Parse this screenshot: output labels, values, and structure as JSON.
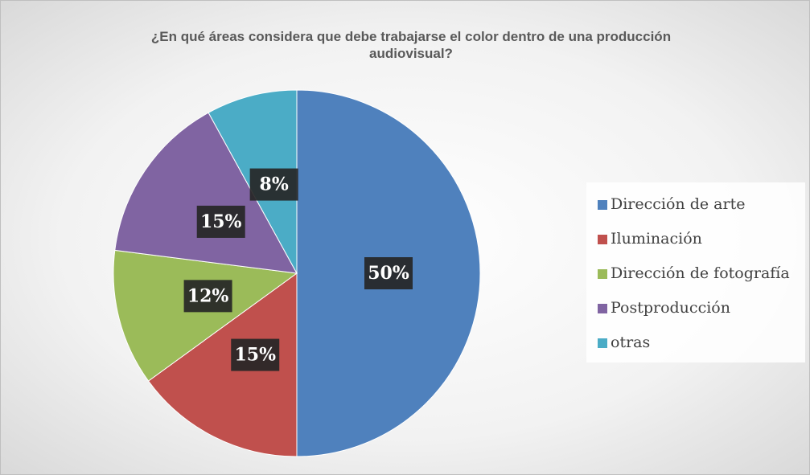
{
  "chart_data": {
    "type": "pie",
    "title": "¿En qué áreas considera que debe trabajarse el color dentro de una producción audiovisual?",
    "categories": [
      "Dirección de arte",
      "Iluminación",
      "Dirección de fotografía",
      "Postproducción",
      "otras"
    ],
    "values": [
      50,
      15,
      12,
      15,
      8
    ],
    "value_labels": [
      "50%",
      "15%",
      "12%",
      "15%",
      "8%"
    ],
    "colors": [
      "#4f81bd",
      "#c0504d",
      "#9bbb59",
      "#8064a2",
      "#4bacc6"
    ],
    "legend": "right"
  }
}
